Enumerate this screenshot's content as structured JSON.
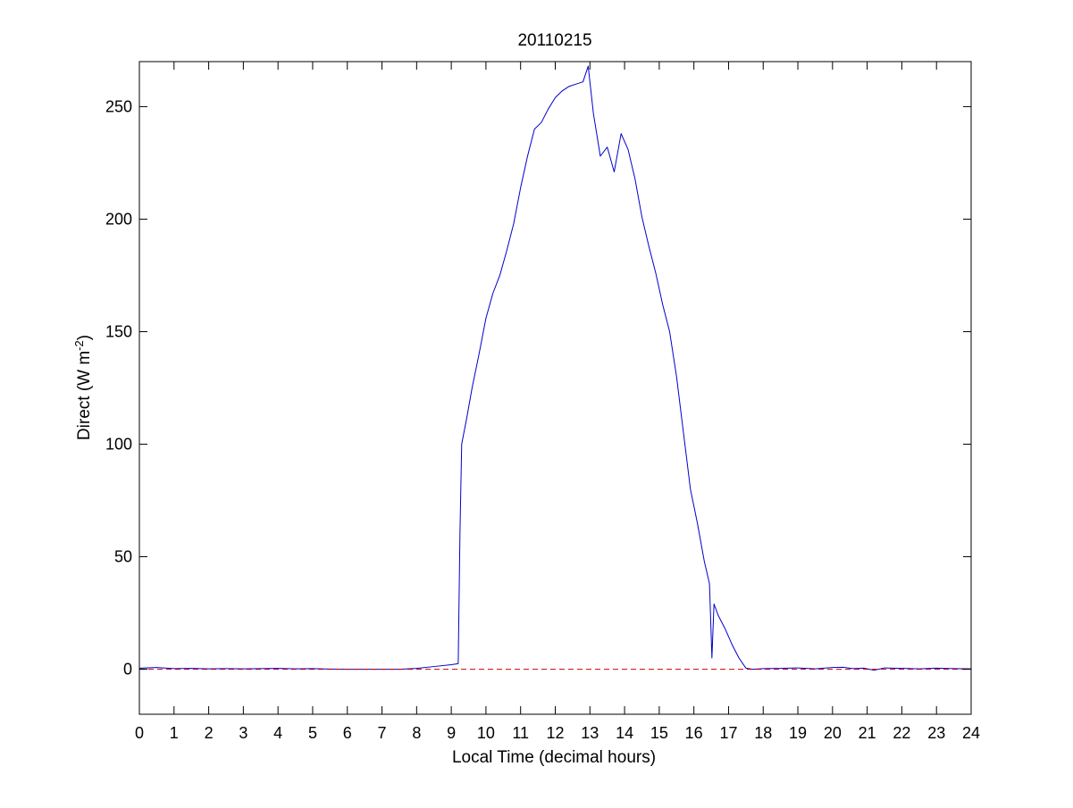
{
  "chart_data": {
    "type": "line",
    "title": "20110215",
    "xlabel": "Local Time (decimal hours)",
    "ylabel": {
      "prefix": "Direct (W m",
      "superscript": "-2",
      "suffix": ")"
    },
    "xlim": [
      0,
      24
    ],
    "ylim": [
      -20,
      270
    ],
    "xticks": [
      0,
      1,
      2,
      3,
      4,
      5,
      6,
      7,
      8,
      9,
      10,
      11,
      12,
      13,
      14,
      15,
      16,
      17,
      18,
      19,
      20,
      21,
      22,
      23,
      24
    ],
    "yticks": [
      0,
      50,
      100,
      150,
      200,
      250
    ],
    "grid": false,
    "colors": {
      "series": "#0000cc",
      "reference": "#cc0000",
      "axes": "#000000",
      "background": "#ffffff"
    },
    "series": [
      {
        "style": "solid",
        "x": [
          0,
          0.5,
          1,
          1.5,
          2,
          2.5,
          3,
          3.5,
          4,
          4.5,
          5,
          5.5,
          6,
          6.5,
          7,
          7.5,
          8,
          8.5,
          9,
          9.2,
          9.25,
          9.3,
          9.45,
          9.6,
          9.8,
          10,
          10.2,
          10.4,
          10.6,
          10.8,
          11,
          11.2,
          11.4,
          11.6,
          11.8,
          12,
          12.2,
          12.4,
          12.6,
          12.8,
          12.95,
          13.1,
          13.3,
          13.5,
          13.7,
          13.9,
          14.1,
          14.3,
          14.5,
          14.7,
          14.9,
          15.1,
          15.3,
          15.5,
          15.7,
          15.9,
          16.1,
          16.3,
          16.45,
          16.52,
          16.58,
          16.7,
          16.9,
          17.1,
          17.3,
          17.5,
          17.7,
          18,
          18.5,
          19,
          19.5,
          20,
          20.3,
          20.6,
          20.9,
          21.2,
          21.5,
          22,
          22.5,
          23,
          23.5,
          24
        ],
        "y": [
          0.5,
          0.8,
          0.3,
          0.4,
          0.2,
          0.3,
          0.2,
          0.3,
          0.4,
          0.2,
          0.3,
          0.1,
          0,
          0,
          0,
          0,
          0.4,
          1.2,
          2,
          2.5,
          60,
          100,
          112,
          125,
          140,
          156,
          167,
          175,
          186,
          198,
          214,
          228,
          240,
          243,
          249,
          254,
          257,
          259,
          260,
          261,
          268,
          247,
          228,
          232,
          221,
          238,
          231,
          218,
          201,
          188,
          176,
          162,
          150,
          130,
          105,
          80,
          65,
          48,
          38,
          5,
          29,
          24,
          18,
          11,
          5,
          0.5,
          0,
          0.3,
          0.4,
          0.6,
          0.2,
          0.8,
          0.9,
          0.3,
          0.5,
          -0.4,
          0.6,
          0.4,
          0.2,
          0.5,
          0.3,
          0.2
        ]
      },
      {
        "style": "dashed",
        "x": [
          0,
          24
        ],
        "y": [
          0,
          0
        ]
      }
    ]
  }
}
